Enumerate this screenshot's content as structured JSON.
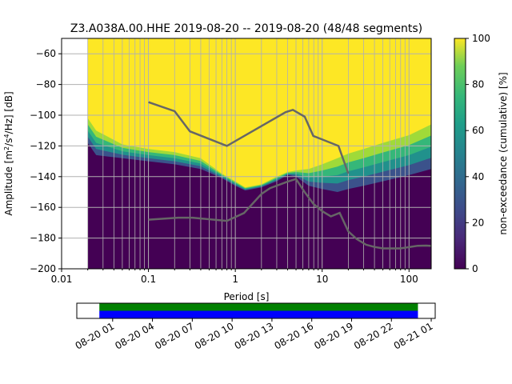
{
  "chart_data": [
    {
      "type": "heatmap",
      "title": "Z3.A038A.00.HHE   2019-08-20 -- 2019-08-20  (48/48 segments)",
      "xlabel": "Period [s]",
      "ylabel_parts": [
        "Amplitude [m",
        "2",
        "/s",
        "4",
        "/Hz] [dB]"
      ],
      "x_scale": "log",
      "xlim": [
        0.01,
        180
      ],
      "ylim": [
        -200,
        -50
      ],
      "x_ticks": [
        0.01,
        0.1,
        1,
        10,
        100
      ],
      "x_tick_labels": [
        "0.01",
        "0.1",
        "1",
        "10",
        "100"
      ],
      "y_ticks": [
        -200,
        -180,
        -160,
        -140,
        -120,
        -100,
        -80,
        -60
      ],
      "y_tick_labels": [
        "−200",
        "−180",
        "−160",
        "−140",
        "−120",
        "−100",
        "−80",
        "−60"
      ],
      "grid": true,
      "data_period_range": [
        0.02,
        180
      ],
      "colorbar": {
        "label": "non-exceedance (cumulative) [%]",
        "range": [
          0,
          100
        ],
        "ticks": [
          0,
          20,
          40,
          60,
          80,
          100
        ],
        "tick_labels": [
          "0",
          "20",
          "40",
          "60",
          "80",
          "100"
        ],
        "colormap": "viridis",
        "colors": [
          "#440154",
          "#3b528b",
          "#21918c",
          "#5ec962",
          "#fde725"
        ]
      },
      "noise_floor_band": {
        "description_points_period": [
          0.02,
          0.025,
          0.05,
          0.1,
          0.2,
          0.4,
          0.7,
          1.0,
          1.3,
          2,
          3,
          4,
          5,
          7,
          10,
          15,
          20,
          30,
          50,
          100,
          180
        ],
        "upper_db": [
          -102,
          -110,
          -119,
          -122,
          -124,
          -128,
          -138,
          -143,
          -147,
          -145,
          -140,
          -137,
          -136,
          -135,
          -132,
          -128,
          -125,
          -122,
          -118,
          -113,
          -106
        ],
        "lower_db": [
          -118,
          -126,
          -128,
          -130,
          -132,
          -135,
          -141,
          -146,
          -149,
          -147,
          -143,
          -139,
          -140,
          -146,
          -148,
          -150,
          -148,
          -146,
          -143,
          -139,
          -135
        ]
      },
      "series": [
        {
          "name": "",
          "color": "#666666",
          "x": [
            0.1,
            0.2,
            0.3,
            0.8,
            3.8,
            4.6,
            6.3,
            7.9,
            15.4,
            20
          ],
          "y": [
            -91.5,
            -97.4,
            -110.5,
            -120,
            -98,
            -96.5,
            -101,
            -113.5,
            -120,
            -138
          ]
        },
        {
          "name": "",
          "color": "#666666",
          "x": [
            0.1,
            0.22,
            0.32,
            0.8,
            1.26,
            2,
            2.51,
            4,
            5,
            6.3,
            7.9,
            10,
            12.6,
            15.9,
            20,
            25,
            32,
            40,
            50,
            63,
            79,
            100,
            126,
            158,
            180
          ],
          "y": [
            -168,
            -166.7,
            -166.7,
            -168.8,
            -163.7,
            -151.3,
            -147.5,
            -143.3,
            -141.5,
            -150.1,
            -157.6,
            -162.5,
            -165.9,
            -163.6,
            -175.7,
            -180.6,
            -184.3,
            -185.8,
            -186.7,
            -186.7,
            -186.7,
            -185.9,
            -185,
            -184.9,
            -185.1
          ]
        }
      ]
    },
    {
      "type": "timeline",
      "x_tick_labels": [
        "08-20 01",
        "08-20 04",
        "08-20 07",
        "08-20 10",
        "08-20 13",
        "08-20 16",
        "08-20 19",
        "08-20 22",
        "08-21 01"
      ],
      "x_tick_hours": [
        1,
        4,
        7,
        10,
        13,
        16,
        19,
        22,
        25
      ],
      "range_hours": [
        -1.7,
        25.3
      ],
      "data_range_hours": [
        0,
        24
      ],
      "bars": [
        {
          "color": "#008000",
          "start_hour": 0,
          "end_hour": 24
        },
        {
          "color": "#0000ff",
          "start_hour": 0,
          "end_hour": 24
        }
      ]
    }
  ]
}
